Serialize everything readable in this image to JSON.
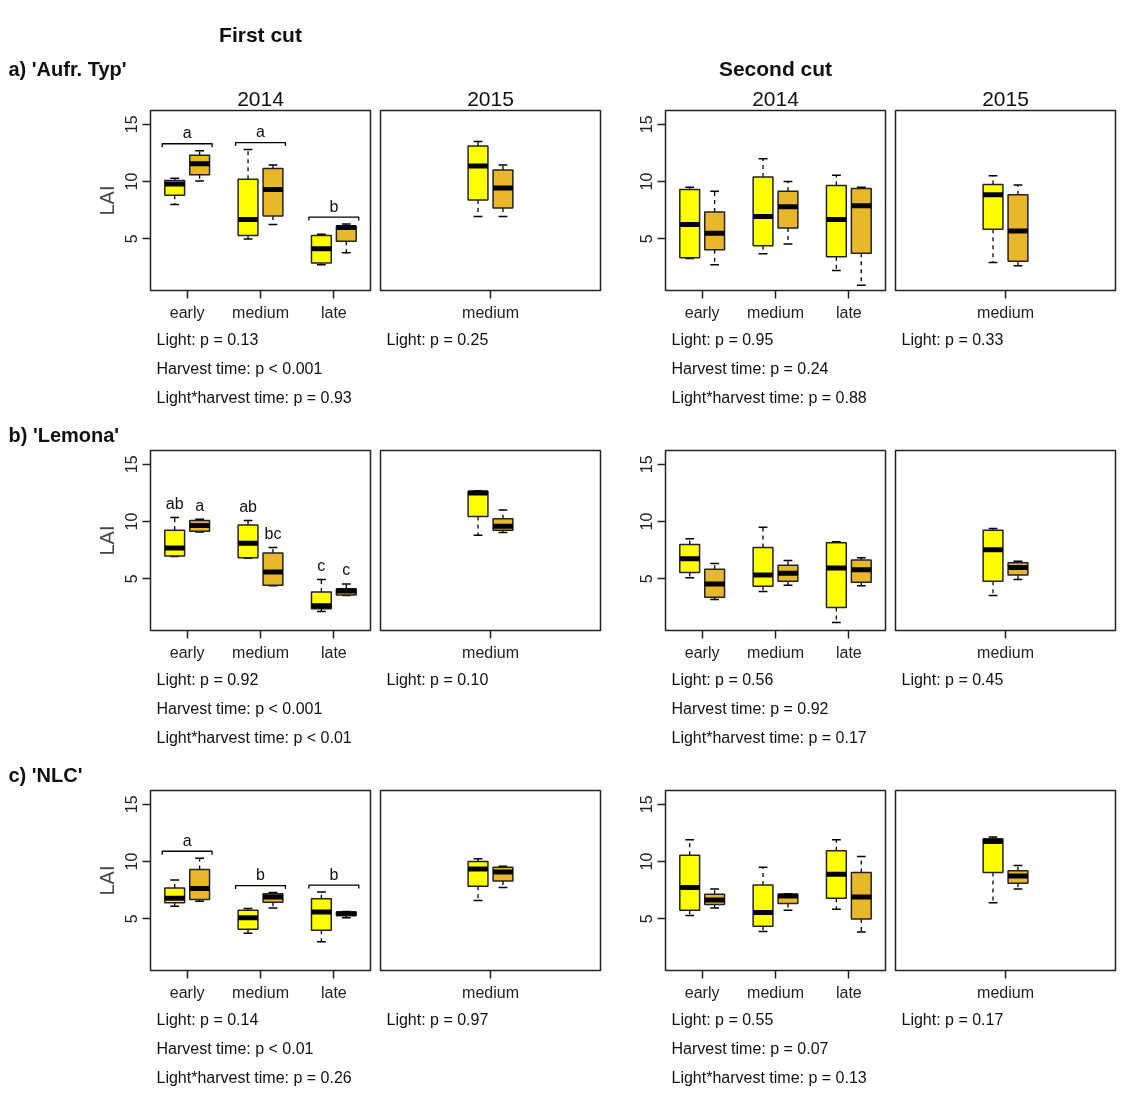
{
  "chart_data": [
    {
      "type": "box",
      "subtitle": "First cut",
      "title": "2014",
      "ylabel": "LAI",
      "categories": [
        "early",
        "medium",
        "late"
      ],
      "ylim": [
        0.5,
        16.2
      ],
      "yticks": [
        5,
        10,
        15
      ],
      "series": [
        {
          "color": "#ffff00",
          "boxes": [
            {
              "low": 8.0,
              "q1": 8.8,
              "median": 9.8,
              "q3": 10.1,
              "high": 10.3
            },
            {
              "low": 5.0,
              "q1": 5.3,
              "median": 6.7,
              "q3": 10.2,
              "high": 12.8
            },
            {
              "low": 2.75,
              "q1": 2.9,
              "median": 4.15,
              "q3": 5.3,
              "high": 5.4
            }
          ]
        },
        {
          "color": "#e8b82a",
          "boxes": [
            {
              "low": 10.05,
              "q1": 10.6,
              "median": 11.55,
              "q3": 12.3,
              "high": 12.7
            },
            {
              "low": 6.25,
              "q1": 7.0,
              "median": 9.3,
              "q3": 11.15,
              "high": 11.45
            },
            {
              "low": 3.8,
              "q1": 4.8,
              "median": 6.0,
              "q3": 6.1,
              "high": 6.3
            }
          ]
        }
      ],
      "annotations": [
        "a) 'Aufr. Typ'",
        "Light: p = 0.13",
        "Harvest time: p < 0.001",
        "Light*harvest time: p = 0.93",
        "a",
        "a",
        "b"
      ]
    },
    {
      "type": "box",
      "title": "2015",
      "categories": [
        "medium"
      ],
      "ylim": [
        0.5,
        16.2
      ],
      "yticks": [
        5,
        10,
        15
      ],
      "tick_labels": "x",
      "series": [
        {
          "color": "#ffff00",
          "boxes": [
            {
              "low": 6.95,
              "q1": 8.4,
              "median": 11.35,
              "q3": 13.1,
              "high": 13.5
            }
          ]
        },
        {
          "color": "#e8b82a",
          "boxes": [
            {
              "low": 6.95,
              "q1": 7.7,
              "median": 9.45,
              "q3": 11.0,
              "high": 11.45
            }
          ]
        }
      ],
      "annotations": [
        "Light: p = 0.25"
      ]
    },
    {
      "type": "box",
      "subtitle": "Second cut",
      "title": "2014",
      "categories": [
        "early",
        "medium",
        "late"
      ],
      "ylim": [
        0.5,
        16.2
      ],
      "yticks": [
        5,
        10,
        15
      ],
      "series": [
        {
          "color": "#ffff00",
          "boxes": [
            {
              "low": 3.3,
              "q1": 3.35,
              "median": 6.25,
              "q3": 9.3,
              "high": 9.5
            },
            {
              "low": 3.7,
              "q1": 4.4,
              "median": 6.95,
              "q3": 10.4,
              "high": 12.0
            },
            {
              "low": 2.25,
              "q1": 3.45,
              "median": 6.7,
              "q3": 9.65,
              "high": 10.55
            }
          ]
        },
        {
          "color": "#e8b82a",
          "boxes": [
            {
              "low": 2.75,
              "q1": 4.05,
              "median": 5.5,
              "q3": 7.35,
              "high": 9.15
            },
            {
              "low": 4.55,
              "q1": 5.95,
              "median": 7.8,
              "q3": 9.15,
              "high": 10.0
            },
            {
              "low": 0.95,
              "q1": 3.75,
              "median": 7.9,
              "q3": 9.4,
              "high": 9.5
            }
          ]
        }
      ],
      "annotations": [
        "Light: p = 0.95",
        "Harvest time: p = 0.24",
        "Light*harvest time: p = 0.88"
      ]
    },
    {
      "type": "box",
      "title": "2015",
      "categories": [
        "medium"
      ],
      "ylim": [
        0.5,
        16.2
      ],
      "yticks": [
        5,
        10,
        15
      ],
      "tick_labels": "x",
      "series": [
        {
          "color": "#ffff00",
          "boxes": [
            {
              "low": 2.95,
              "q1": 5.85,
              "median": 8.85,
              "q3": 9.75,
              "high": 10.5
            }
          ]
        },
        {
          "color": "#e8b82a",
          "boxes": [
            {
              "low": 2.65,
              "q1": 3.05,
              "median": 5.7,
              "q3": 8.85,
              "high": 9.7
            }
          ]
        }
      ],
      "annotations": [
        "Light: p = 0.33"
      ]
    },
    {
      "type": "box",
      "ylabel": "LAI",
      "categories": [
        "early",
        "medium",
        "late"
      ],
      "ylim": [
        0.5,
        16.2
      ],
      "yticks": [
        5,
        10,
        15
      ],
      "series": [
        {
          "color": "#ffff00",
          "boxes": [
            {
              "low": 6.95,
              "q1": 7.0,
              "median": 7.7,
              "q3": 9.25,
              "high": 10.35
            },
            {
              "low": 6.8,
              "q1": 6.85,
              "median": 8.1,
              "q3": 9.7,
              "high": 10.1
            },
            {
              "low": 2.15,
              "q1": 2.4,
              "median": 2.65,
              "q3": 3.85,
              "high": 4.95
            }
          ]
        },
        {
          "color": "#e8b82a",
          "boxes": [
            {
              "low": 9.1,
              "q1": 9.15,
              "median": 9.65,
              "q3": 10.1,
              "high": 10.2
            },
            {
              "low": 4.4,
              "q1": 4.45,
              "median": 5.6,
              "q3": 7.25,
              "high": 7.75
            },
            {
              "low": 3.55,
              "q1": 3.6,
              "median": 3.95,
              "q3": 4.15,
              "high": 4.55
            }
          ]
        }
      ],
      "annotations": [
        "b) 'Lemona'",
        "Light: p = 0.92",
        "Harvest time: p < 0.001",
        "Light*harvest time: p < 0.01",
        "ab",
        "a",
        "ab",
        "bc",
        "c",
        "c"
      ]
    },
    {
      "type": "box",
      "categories": [
        "medium"
      ],
      "ylim": [
        0.5,
        16.2
      ],
      "yticks": [
        5,
        10,
        15
      ],
      "tick_labels": "x",
      "series": [
        {
          "color": "#ffff00",
          "boxes": [
            {
              "low": 8.8,
              "q1": 10.45,
              "median": 12.5,
              "q3": 12.65,
              "high": 12.7
            }
          ]
        },
        {
          "color": "#e8b82a",
          "boxes": [
            {
              "low": 9.05,
              "q1": 9.25,
              "median": 9.6,
              "q3": 10.25,
              "high": 11.0
            }
          ]
        }
      ],
      "annotations": [
        "Light: p = 0.10"
      ]
    },
    {
      "type": "box",
      "categories": [
        "early",
        "medium",
        "late"
      ],
      "ylim": [
        0.5,
        16.2
      ],
      "yticks": [
        5,
        10,
        15
      ],
      "series": [
        {
          "color": "#ffff00",
          "boxes": [
            {
              "low": 5.1,
              "q1": 5.55,
              "median": 6.75,
              "q3": 8.0,
              "high": 8.5
            },
            {
              "low": 3.9,
              "q1": 4.35,
              "median": 5.35,
              "q3": 7.75,
              "high": 9.5
            },
            {
              "low": 1.2,
              "q1": 2.5,
              "median": 5.95,
              "q3": 8.15,
              "high": 8.25
            }
          ]
        },
        {
          "color": "#e8b82a",
          "boxes": [
            {
              "low": 3.2,
              "q1": 3.4,
              "median": 4.55,
              "q3": 5.85,
              "high": 6.35
            },
            {
              "low": 4.45,
              "q1": 4.8,
              "median": 5.5,
              "q3": 6.2,
              "high": 6.6
            },
            {
              "low": 4.4,
              "q1": 4.7,
              "median": 5.8,
              "q3": 6.65,
              "high": 6.85
            }
          ]
        }
      ],
      "annotations": [
        "Light: p = 0.56",
        "Harvest time: p = 0.92",
        "Light*harvest time: p = 0.17"
      ]
    },
    {
      "type": "box",
      "categories": [
        "medium"
      ],
      "ylim": [
        0.5,
        16.2
      ],
      "yticks": [
        5,
        10,
        15
      ],
      "tick_labels": "x",
      "series": [
        {
          "color": "#ffff00",
          "boxes": [
            {
              "low": 3.55,
              "q1": 4.8,
              "median": 7.55,
              "q3": 9.25,
              "high": 9.4
            }
          ]
        },
        {
          "color": "#e8b82a",
          "boxes": [
            {
              "low": 4.95,
              "q1": 5.35,
              "median": 6.0,
              "q3": 6.4,
              "high": 6.55
            }
          ]
        }
      ],
      "annotations": [
        "Light: p = 0.45"
      ]
    },
    {
      "type": "box",
      "ylabel": "LAI",
      "categories": [
        "early",
        "medium",
        "late"
      ],
      "ylim": [
        0.5,
        16.2
      ],
      "yticks": [
        5,
        10,
        15
      ],
      "series": [
        {
          "color": "#ffff00",
          "boxes": [
            {
              "low": 6.1,
              "q1": 6.4,
              "median": 6.8,
              "q3": 7.7,
              "high": 8.4
            },
            {
              "low": 3.75,
              "q1": 4.1,
              "median": 5.1,
              "q3": 5.75,
              "high": 5.9
            },
            {
              "low": 3.0,
              "q1": 4.0,
              "median": 5.6,
              "q3": 6.75,
              "high": 7.35
            }
          ]
        },
        {
          "color": "#e8b82a",
          "boxes": [
            {
              "low": 6.55,
              "q1": 6.7,
              "median": 7.65,
              "q3": 9.3,
              "high": 10.3
            },
            {
              "low": 5.95,
              "q1": 6.45,
              "median": 6.9,
              "q3": 7.2,
              "high": 7.3
            },
            {
              "low": 5.1,
              "q1": 5.3,
              "median": 5.45,
              "q3": 5.6,
              "high": 5.65
            }
          ]
        }
      ],
      "annotations": [
        "c) 'NLC'",
        "Light: p = 0.14",
        "Harvest time: p < 0.01",
        "Light*harvest time: p = 0.26",
        "a",
        "b",
        "b"
      ]
    },
    {
      "type": "box",
      "categories": [
        "medium"
      ],
      "ylim": [
        0.5,
        16.2
      ],
      "yticks": [
        5,
        10,
        15
      ],
      "tick_labels": "x",
      "series": [
        {
          "color": "#ffff00",
          "boxes": [
            {
              "low": 6.6,
              "q1": 7.85,
              "median": 9.35,
              "q3": 10.0,
              "high": 10.25
            }
          ]
        },
        {
          "color": "#e8b82a",
          "boxes": [
            {
              "low": 7.75,
              "q1": 8.3,
              "median": 9.1,
              "q3": 9.5,
              "high": 9.6
            }
          ]
        }
      ],
      "annotations": [
        "Light: p = 0.97"
      ]
    },
    {
      "type": "box",
      "categories": [
        "early",
        "medium",
        "late"
      ],
      "ylim": [
        0.5,
        16.2
      ],
      "yticks": [
        5,
        10,
        15
      ],
      "series": [
        {
          "color": "#ffff00",
          "boxes": [
            {
              "low": 5.3,
              "q1": 5.75,
              "median": 7.75,
              "q3": 10.55,
              "high": 11.9
            },
            {
              "low": 3.9,
              "q1": 4.35,
              "median": 5.55,
              "q3": 7.95,
              "high": 9.5
            },
            {
              "low": 5.85,
              "q1": 6.8,
              "median": 8.9,
              "q3": 10.95,
              "high": 11.9
            }
          ]
        },
        {
          "color": "#e8b82a",
          "boxes": [
            {
              "low": 5.95,
              "q1": 6.25,
              "median": 6.65,
              "q3": 7.15,
              "high": 7.6
            },
            {
              "low": 5.75,
              "q1": 6.35,
              "median": 7.0,
              "q3": 7.15,
              "high": 7.2
            },
            {
              "low": 3.85,
              "q1": 5.0,
              "median": 6.9,
              "q3": 9.05,
              "high": 10.45
            }
          ]
        }
      ],
      "annotations": [
        "Light: p = 0.55",
        "Harvest time: p = 0.07",
        "Light*harvest time: p = 0.13"
      ]
    },
    {
      "type": "box",
      "categories": [
        "medium"
      ],
      "ylim": [
        0.5,
        16.2
      ],
      "yticks": [
        5,
        10,
        15
      ],
      "tick_labels": "x",
      "series": [
        {
          "color": "#ffff00",
          "boxes": [
            {
              "low": 6.4,
              "q1": 9.05,
              "median": 11.75,
              "q3": 12.0,
              "high": 12.15
            }
          ]
        },
        {
          "color": "#e8b82a",
          "boxes": [
            {
              "low": 7.6,
              "q1": 8.1,
              "median": 8.75,
              "q3": 9.2,
              "high": 9.65
            }
          ]
        }
      ],
      "annotations": [
        "Light: p = 0.17"
      ]
    }
  ]
}
